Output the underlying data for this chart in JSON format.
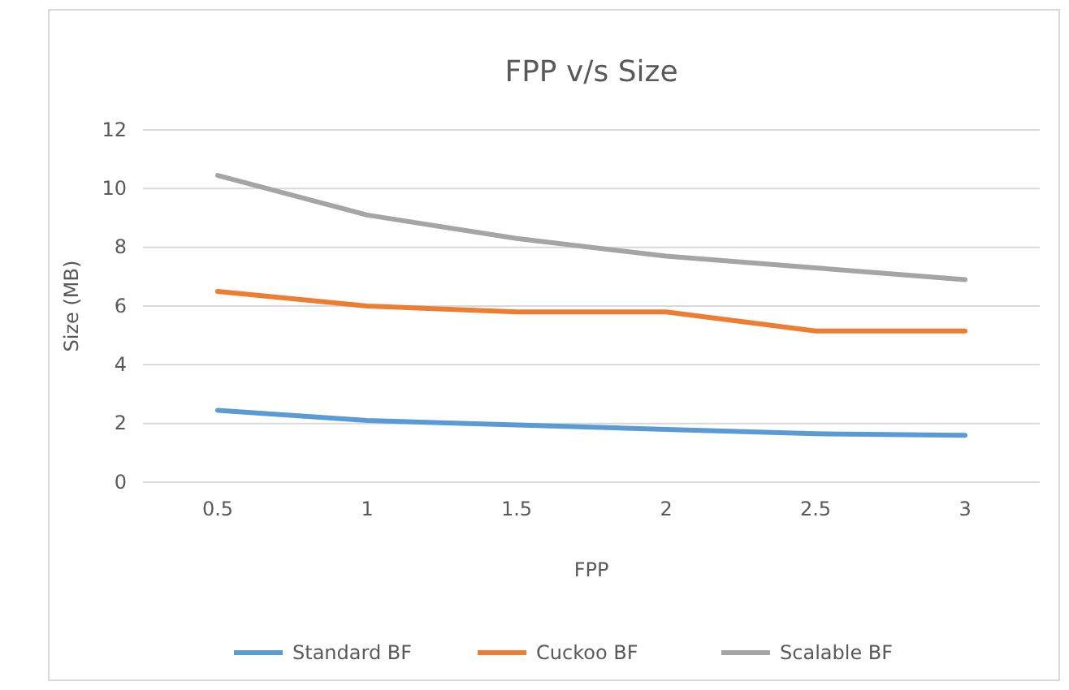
{
  "chart_data": {
    "type": "line",
    "title": "FPP v/s Size",
    "xlabel": "FPP",
    "ylabel": "Size (MB)",
    "categories": [
      "0.5",
      "1",
      "1.5",
      "2",
      "2.5",
      "3"
    ],
    "series": [
      {
        "name": "Standard BF",
        "color": "#5b9bd5",
        "values": [
          2.45,
          2.1,
          1.95,
          1.8,
          1.65,
          1.6
        ]
      },
      {
        "name": "Cuckoo BF",
        "color": "#ed7d31",
        "values": [
          6.5,
          6.0,
          5.8,
          5.8,
          5.15,
          5.15
        ]
      },
      {
        "name": "Scalable BF",
        "color": "#a5a5a5",
        "values": [
          10.45,
          9.1,
          8.3,
          7.7,
          7.3,
          6.9
        ]
      }
    ],
    "ylim": [
      0,
      12
    ],
    "yticks": [
      0,
      2,
      4,
      6,
      8,
      10,
      12
    ],
    "grid": "y",
    "legend": "bottom",
    "marker": "none",
    "line_style": "solid"
  }
}
